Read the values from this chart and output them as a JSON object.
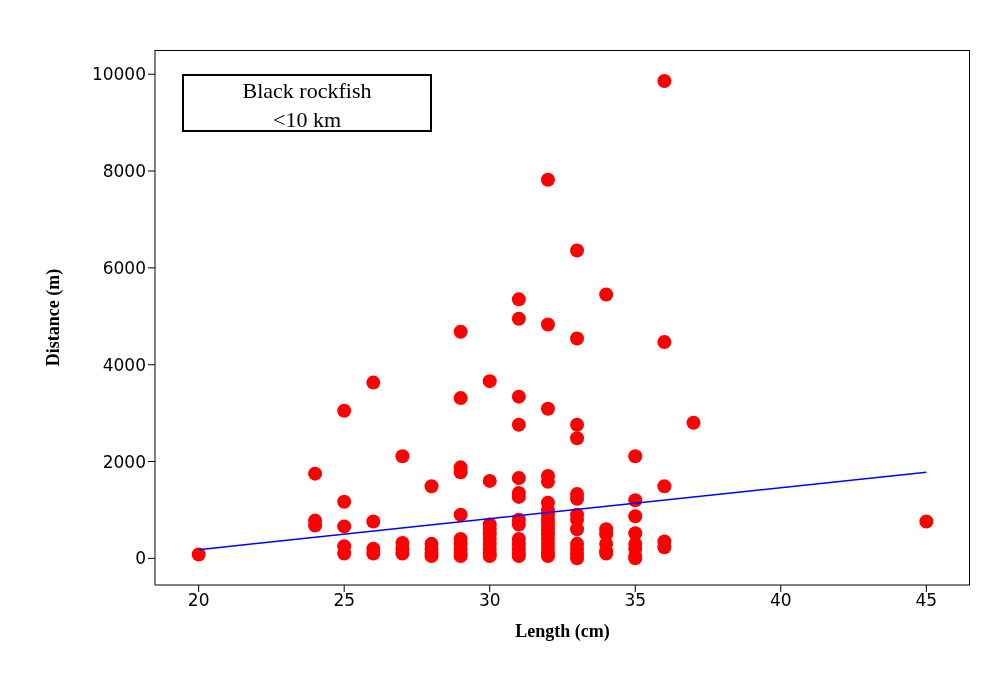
{
  "chart_data": {
    "type": "scatter",
    "title": "Black rockfish",
    "subtitle": "<10 km",
    "xlabel": "Length (cm)",
    "ylabel": "Distance (m)",
    "xlim": [
      18.5,
      46.5
    ],
    "xticks": [
      20,
      25,
      30,
      35,
      40,
      45
    ],
    "ylim": [
      -550,
      10500
    ],
    "yticks": [
      0,
      2000,
      4000,
      6000,
      8000,
      10000
    ],
    "marker": "circle",
    "series": [
      {
        "color": "#ff0000",
        "x": [
          20,
          24,
          24,
          24,
          25,
          25,
          25,
          25,
          25,
          26,
          26,
          26,
          26,
          27,
          27,
          27,
          27,
          28,
          28,
          28,
          28,
          28,
          29,
          29,
          29,
          29,
          29,
          29,
          29,
          29,
          29,
          29,
          30,
          30,
          30,
          30,
          30,
          30,
          30,
          30,
          30,
          30,
          31,
          31,
          31,
          31,
          31,
          31,
          31,
          31,
          31,
          31,
          31,
          31,
          31,
          31,
          32,
          32,
          32,
          32,
          32,
          32,
          32,
          32,
          32,
          32,
          32,
          32,
          32,
          32,
          32,
          32,
          32,
          33,
          33,
          33,
          33,
          33,
          33,
          33,
          33,
          33,
          33,
          33,
          33,
          33,
          34,
          34,
          34,
          34,
          34,
          34,
          35,
          35,
          35,
          35,
          35,
          35,
          35,
          35,
          36,
          36,
          36,
          36,
          36,
          37,
          45
        ],
        "values": [
          80,
          1750,
          780,
          680,
          3050,
          1170,
          660,
          250,
          100,
          3630,
          760,
          200,
          100,
          2110,
          320,
          200,
          100,
          1490,
          300,
          200,
          100,
          50,
          4680,
          3310,
          1880,
          1780,
          900,
          400,
          300,
          200,
          100,
          50,
          3660,
          1600,
          700,
          600,
          500,
          400,
          300,
          200,
          100,
          50,
          5350,
          4950,
          3340,
          2760,
          1660,
          1350,
          1270,
          800,
          700,
          400,
          300,
          200,
          100,
          50,
          7820,
          4830,
          3090,
          1700,
          1580,
          1150,
          1000,
          900,
          800,
          700,
          600,
          500,
          400,
          300,
          200,
          100,
          50,
          6360,
          4540,
          2760,
          2480,
          1330,
          1230,
          900,
          800,
          600,
          300,
          200,
          100,
          0,
          5450,
          600,
          500,
          300,
          150,
          100,
          2110,
          1200,
          870,
          520,
          300,
          200,
          50,
          0,
          9860,
          4470,
          1490,
          350,
          230,
          2800,
          760
        ]
      },
      {
        "type": "line",
        "color": "#0000ff",
        "marker": "none",
        "x": [
          20,
          45
        ],
        "values": [
          180,
          1780
        ]
      }
    ]
  }
}
